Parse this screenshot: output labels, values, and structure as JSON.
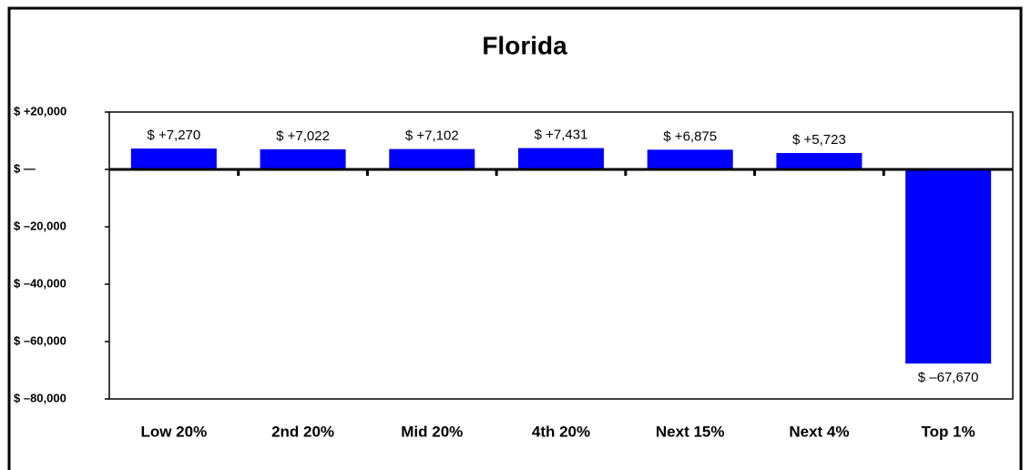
{
  "chart_data": {
    "type": "bar",
    "title": "Florida",
    "categories": [
      "Low 20%",
      "2nd 20%",
      "Mid 20%",
      "4th 20%",
      "Next 15%",
      "Next 4%",
      "Top 1%"
    ],
    "values": [
      7270,
      7022,
      7102,
      7431,
      6875,
      5723,
      -67670
    ],
    "value_labels": [
      "$ +7,270",
      "$ +7,022",
      "$ +7,102",
      "$ +7,431",
      "$ +6,875",
      "$ +5,723",
      "$ –67,670"
    ],
    "color": "#0000ff",
    "ylim": [
      -80000,
      20000
    ],
    "yticks": [
      {
        "value": -80000,
        "label": "$ –80,000"
      },
      {
        "value": -60000,
        "label": "$ –60,000"
      },
      {
        "value": -40000,
        "label": "$ –40,000"
      },
      {
        "value": -20000,
        "label": "$ –20,000"
      },
      {
        "value": 0,
        "label": "$ —"
      },
      {
        "value": 20000,
        "label": "$ +20,000"
      }
    ],
    "grid": false
  }
}
